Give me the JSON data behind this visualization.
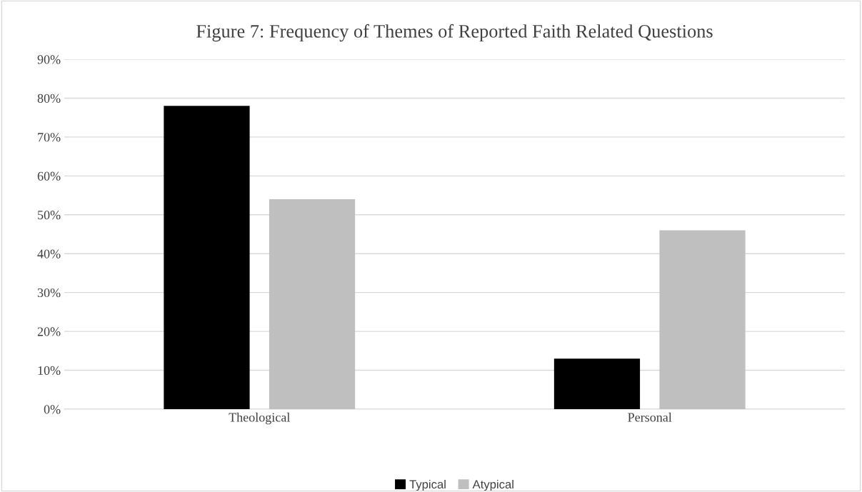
{
  "chart_data": {
    "type": "bar",
    "title": "Figure 7: Frequency of Themes of Reported Faith Related Questions",
    "categories": [
      "Theological",
      "Personal"
    ],
    "series": [
      {
        "name": "Typical",
        "color": "#000000",
        "values": [
          78,
          13
        ]
      },
      {
        "name": "Atypical",
        "color": "#bfbfbf",
        "values": [
          54,
          46
        ]
      }
    ],
    "ylim": [
      0,
      90
    ],
    "yticks": [
      {
        "value": 0,
        "label": "0%"
      },
      {
        "value": 10,
        "label": "10%"
      },
      {
        "value": 20,
        "label": "20%"
      },
      {
        "value": 30,
        "label": "30%"
      },
      {
        "value": 40,
        "label": "40%"
      },
      {
        "value": 50,
        "label": "50%"
      },
      {
        "value": 60,
        "label": "60%"
      },
      {
        "value": 70,
        "label": "70%"
      },
      {
        "value": 80,
        "label": "80%"
      },
      {
        "value": 90,
        "label": "90%"
      }
    ],
    "grid": "y",
    "legend": "bottom"
  }
}
